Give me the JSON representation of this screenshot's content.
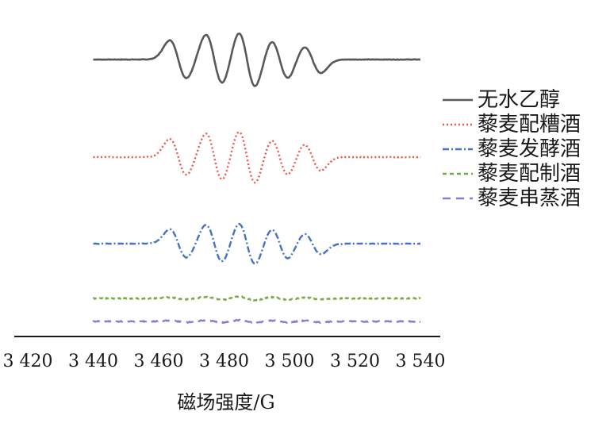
{
  "chart_data": {
    "type": "line",
    "xlabel": "磁场强度/G",
    "ylabel": "",
    "xlim": [
      3420,
      3540
    ],
    "x_ticks": [
      "3 420",
      "3 440",
      "3 460",
      "3 480",
      "3 500",
      "3 520",
      "3 540"
    ],
    "x_tick_values": [
      3420,
      3440,
      3460,
      3480,
      3500,
      3520,
      3540
    ],
    "y_axis_shown": false,
    "grid": false,
    "legend_position": "right",
    "signal_range": [
      3440,
      3540
    ],
    "peak_positions": [
      3466,
      3477,
      3487,
      3497,
      3507
    ],
    "series": [
      {
        "name": "无水乙醇",
        "color": "#595959",
        "dash": "solid",
        "amplitudes": [
          1.0,
          1.3,
          1.45,
          1.0,
          0.7
        ]
      },
      {
        "name": "藜麦配糟酒",
        "color": "#e8584a",
        "dash": "dotted",
        "amplitudes": [
          0.95,
          1.25,
          1.4,
          0.95,
          0.7
        ]
      },
      {
        "name": "藜麦发酵酒",
        "color": "#4472c4",
        "dash": "dash-dot",
        "amplitudes": [
          0.75,
          1.0,
          1.1,
          0.8,
          0.55
        ]
      },
      {
        "name": "藜麦配制酒",
        "color": "#70ad47",
        "dash": "dashed",
        "amplitudes": [
          0.05,
          0.08,
          0.1,
          0.07,
          0.05
        ]
      },
      {
        "name": "藜麦串蒸酒",
        "color": "#8b7bd6",
        "dash": "long-dashed",
        "amplitudes": [
          0.04,
          0.06,
          0.07,
          0.05,
          0.04
        ]
      }
    ]
  }
}
